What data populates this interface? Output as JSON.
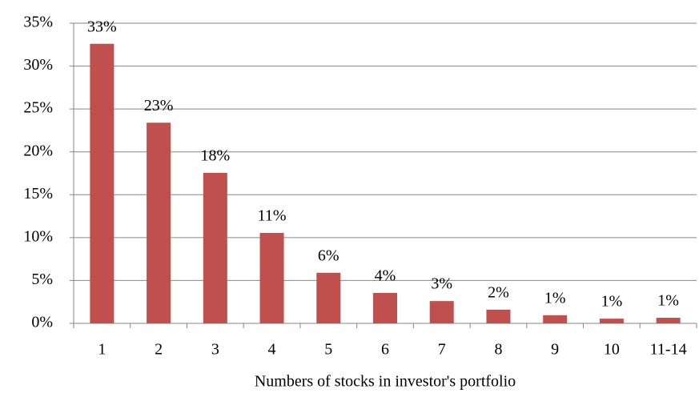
{
  "chart_data": {
    "type": "bar",
    "x_label": "Numbers of stocks in investor's portfolio",
    "categories": [
      "1",
      "2",
      "3",
      "4",
      "5",
      "6",
      "7",
      "8",
      "9",
      "10",
      "11-14"
    ],
    "values": [
      32.6,
      23.4,
      17.55,
      10.55,
      5.9,
      3.55,
      2.6,
      1.6,
      0.95,
      0.55,
      0.65
    ],
    "value_labels": [
      "33%",
      "23%",
      "18%",
      "11%",
      "6%",
      "4%",
      "3%",
      "2%",
      "1%",
      "1%",
      "1%"
    ],
    "color": "#c0504d",
    "ylim": [
      0,
      35
    ],
    "yticks": [
      {
        "value": 0,
        "label": "0%"
      },
      {
        "value": 5,
        "label": "5%"
      },
      {
        "value": 10,
        "label": "10%"
      },
      {
        "value": 15,
        "label": "15%"
      },
      {
        "value": 20,
        "label": "20%"
      },
      {
        "value": 25,
        "label": "25%"
      },
      {
        "value": 30,
        "label": "30%"
      },
      {
        "value": 35,
        "label": "35%"
      }
    ],
    "grid": true
  }
}
